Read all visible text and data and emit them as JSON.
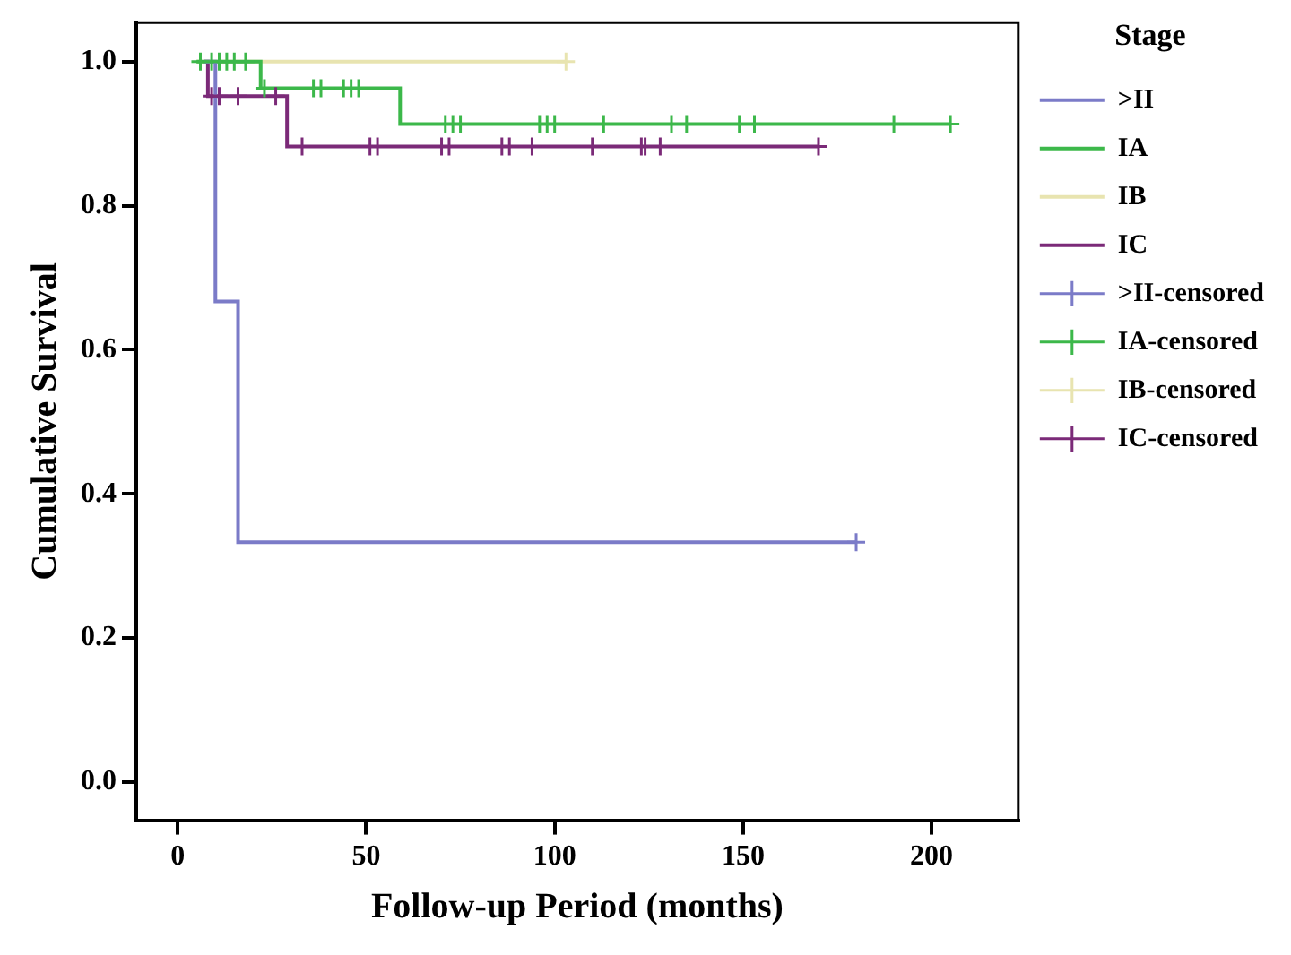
{
  "chart_data": {
    "type": "step",
    "xlabel": "Follow-up Period (months)",
    "ylabel": "Cumulative Survival",
    "legend_title": "Stage",
    "legend": "right",
    "grid": false,
    "xlim": [
      -11,
      223
    ],
    "xticks": [
      0,
      50,
      100,
      150,
      200
    ],
    "ylim": [
      -0.053,
      1.054
    ],
    "yticks": [
      {
        "value": 0,
        "label": "0.0"
      },
      {
        "value": 0.2,
        "label": "0.2"
      },
      {
        "value": 0.4,
        "label": "0.4"
      },
      {
        "value": 0.6,
        "label": "0.6"
      },
      {
        "value": 0.8,
        "label": "0.8"
      },
      {
        "value": 1,
        "label": "1.0"
      }
    ],
    "series": [
      {
        "name": ">II",
        "color": "#7b7bc8",
        "x": [
          7,
          10,
          16,
          180
        ],
        "values": [
          1,
          0.667,
          0.333,
          0.333
        ]
      },
      {
        "name": "IA",
        "color": "#3cb84a",
        "x": [
          5,
          22,
          59,
          205
        ],
        "values": [
          1,
          0.963,
          0.913,
          0.913
        ]
      },
      {
        "name": "IB",
        "color": "#e8e4b0",
        "x": [
          5,
          103
        ],
        "values": [
          1,
          1
        ]
      },
      {
        "name": "IC",
        "color": "#7b2a78",
        "x": [
          7,
          8,
          29,
          170
        ],
        "values": [
          1,
          0.952,
          0.882,
          0.882
        ]
      },
      {
        "name": ">II-censored",
        "type": "scatter",
        "marker": "cross",
        "color": "#7b7bc8",
        "x": [
          180
        ],
        "values": [
          0.333
        ]
      },
      {
        "name": "IA-censored",
        "type": "scatter",
        "marker": "cross",
        "color": "#3cb84a",
        "x": [
          6,
          9,
          11,
          13,
          15,
          18,
          23,
          36,
          38,
          44,
          46,
          48,
          71,
          73,
          75,
          96,
          98,
          100,
          113,
          131,
          135,
          149,
          153,
          190,
          205
        ],
        "values": [
          1,
          1,
          1,
          1,
          1,
          1,
          0.963,
          0.963,
          0.963,
          0.963,
          0.963,
          0.963,
          0.913,
          0.913,
          0.913,
          0.913,
          0.913,
          0.913,
          0.913,
          0.913,
          0.913,
          0.913,
          0.913,
          0.913,
          0.913
        ]
      },
      {
        "name": "IB-censored",
        "type": "scatter",
        "marker": "cross",
        "color": "#e8e4b0",
        "x": [
          103
        ],
        "values": [
          1
        ]
      },
      {
        "name": "IC-censored",
        "type": "scatter",
        "marker": "cross",
        "color": "#7b2a78",
        "x": [
          9,
          11,
          16,
          26,
          33,
          51,
          53,
          70,
          72,
          86,
          88,
          94,
          110,
          123,
          124,
          128,
          170
        ],
        "values": [
          0.952,
          0.952,
          0.952,
          0.952,
          0.882,
          0.882,
          0.882,
          0.882,
          0.882,
          0.882,
          0.882,
          0.882,
          0.882,
          0.882,
          0.882,
          0.882,
          0.882
        ]
      }
    ]
  }
}
